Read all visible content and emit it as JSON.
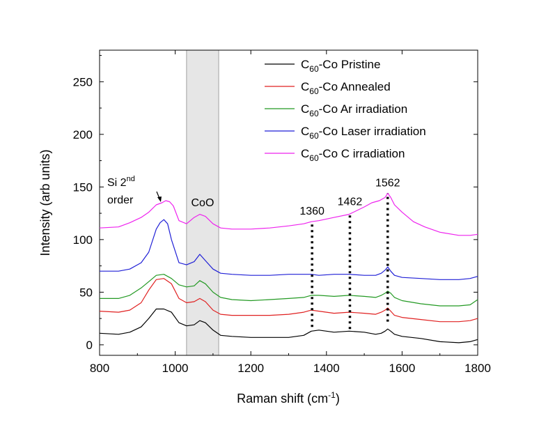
{
  "chart_data": {
    "type": "line",
    "title": "",
    "xlabel": "Raman shift (cm",
    "xlabel_sup": "-1",
    "xlabel_end": ")",
    "ylabel": "Intensity (arb units)",
    "xlim": [
      800,
      1800
    ],
    "ylim": [
      -10,
      280
    ],
    "xticks": [
      800,
      1000,
      1200,
      1400,
      1600,
      1800
    ],
    "yticks": [
      0,
      50,
      100,
      150,
      200,
      250
    ],
    "legend_position": "top-right",
    "series": [
      {
        "legend_prefix": "C",
        "legend_sub": "60",
        "legend_suffix": "-Co Pristine",
        "color": "#000000",
        "x": [
          800,
          850,
          880,
          910,
          930,
          950,
          970,
          990,
          1010,
          1030,
          1050,
          1065,
          1080,
          1100,
          1120,
          1150,
          1200,
          1250,
          1300,
          1340,
          1360,
          1380,
          1420,
          1460,
          1500,
          1530,
          1545,
          1555,
          1562,
          1570,
          1580,
          1600,
          1650,
          1700,
          1750,
          1780,
          1800
        ],
        "y": [
          11,
          10,
          12,
          17,
          25,
          34,
          34,
          31,
          21,
          18,
          19,
          23,
          21,
          14,
          9,
          8,
          7,
          7,
          7,
          9,
          13,
          14,
          12,
          13,
          12,
          10,
          11,
          13,
          15,
          13,
          10,
          8,
          6,
          3,
          2,
          3,
          5
        ]
      },
      {
        "legend_prefix": "C",
        "legend_sub": "60",
        "legend_suffix": "-Co Annealed",
        "color": "#e02020",
        "x": [
          800,
          850,
          880,
          910,
          930,
          950,
          970,
          990,
          1010,
          1030,
          1050,
          1065,
          1080,
          1100,
          1120,
          1150,
          1200,
          1250,
          1300,
          1340,
          1360,
          1380,
          1420,
          1460,
          1500,
          1530,
          1545,
          1555,
          1562,
          1570,
          1580,
          1600,
          1650,
          1700,
          1750,
          1780,
          1800
        ],
        "y": [
          32,
          31,
          33,
          40,
          52,
          62,
          63,
          58,
          44,
          40,
          41,
          44,
          41,
          33,
          29,
          28,
          28,
          28,
          29,
          31,
          33,
          32,
          30,
          31,
          30,
          29,
          31,
          33,
          35,
          32,
          28,
          26,
          24,
          22,
          22,
          23,
          25
        ]
      },
      {
        "legend_prefix": "C",
        "legend_sub": "60",
        "legend_suffix": "-Co Ar irradiation",
        "color": "#229922",
        "x": [
          800,
          850,
          880,
          910,
          930,
          950,
          970,
          990,
          1010,
          1030,
          1050,
          1065,
          1080,
          1100,
          1120,
          1150,
          1200,
          1250,
          1300,
          1340,
          1360,
          1380,
          1420,
          1460,
          1500,
          1530,
          1545,
          1555,
          1562,
          1570,
          1580,
          1600,
          1650,
          1700,
          1750,
          1780,
          1800
        ],
        "y": [
          44,
          44,
          47,
          54,
          60,
          66,
          67,
          63,
          57,
          55,
          56,
          61,
          58,
          50,
          45,
          43,
          42,
          43,
          44,
          45,
          47,
          47,
          46,
          47,
          46,
          45,
          47,
          49,
          51,
          49,
          45,
          42,
          39,
          37,
          37,
          38,
          43
        ]
      },
      {
        "legend_prefix": "C",
        "legend_sub": "60",
        "legend_suffix": "-Co Laser irradiation",
        "color": "#1f1fd6",
        "x": [
          800,
          850,
          880,
          910,
          930,
          950,
          960,
          970,
          980,
          990,
          1010,
          1030,
          1050,
          1065,
          1080,
          1100,
          1120,
          1150,
          1200,
          1250,
          1300,
          1340,
          1360,
          1380,
          1420,
          1460,
          1500,
          1530,
          1545,
          1555,
          1562,
          1570,
          1580,
          1600,
          1650,
          1700,
          1750,
          1780,
          1800
        ],
        "y": [
          70,
          70,
          72,
          78,
          88,
          110,
          116,
          119,
          115,
          100,
          78,
          76,
          79,
          86,
          80,
          72,
          68,
          67,
          66,
          66,
          67,
          67,
          67,
          66,
          67,
          67,
          66,
          66,
          68,
          71,
          74,
          70,
          66,
          64,
          63,
          62,
          62,
          63,
          65
        ]
      },
      {
        "legend_prefix": "C",
        "legend_sub": "60",
        "legend_suffix": "-Co C irradiation",
        "color": "#ee22ee",
        "x": [
          800,
          850,
          880,
          910,
          930,
          950,
          965,
          975,
          985,
          995,
          1010,
          1030,
          1050,
          1065,
          1080,
          1100,
          1120,
          1150,
          1200,
          1250,
          1300,
          1340,
          1360,
          1380,
          1420,
          1460,
          1500,
          1520,
          1540,
          1555,
          1562,
          1570,
          1580,
          1600,
          1630,
          1660,
          1700,
          1750,
          1780,
          1800
        ],
        "y": [
          111,
          112,
          116,
          121,
          126,
          133,
          135,
          137,
          136,
          132,
          118,
          115,
          121,
          124,
          122,
          115,
          111,
          110,
          110,
          111,
          113,
          115,
          117,
          118,
          121,
          124,
          131,
          135,
          137,
          140,
          144,
          140,
          133,
          126,
          117,
          112,
          107,
          104,
          104,
          105
        ]
      }
    ],
    "shaded_band": {
      "label": "CoO",
      "x_range": [
        1030,
        1115
      ]
    },
    "peak_markers": [
      {
        "label": "1360",
        "x": 1362,
        "y_from": 17,
        "y_to": 117
      },
      {
        "label": "1462",
        "x": 1462,
        "y_from": 15,
        "y_to": 126
      },
      {
        "label": "1562",
        "x": 1562,
        "y_from": 22,
        "y_to": 144
      }
    ],
    "si_annotation": {
      "line1_text": "Si 2",
      "line1_sup": "nd",
      "line2_text": "order",
      "arrow_target": {
        "x": 962,
        "y": 135
      }
    }
  }
}
